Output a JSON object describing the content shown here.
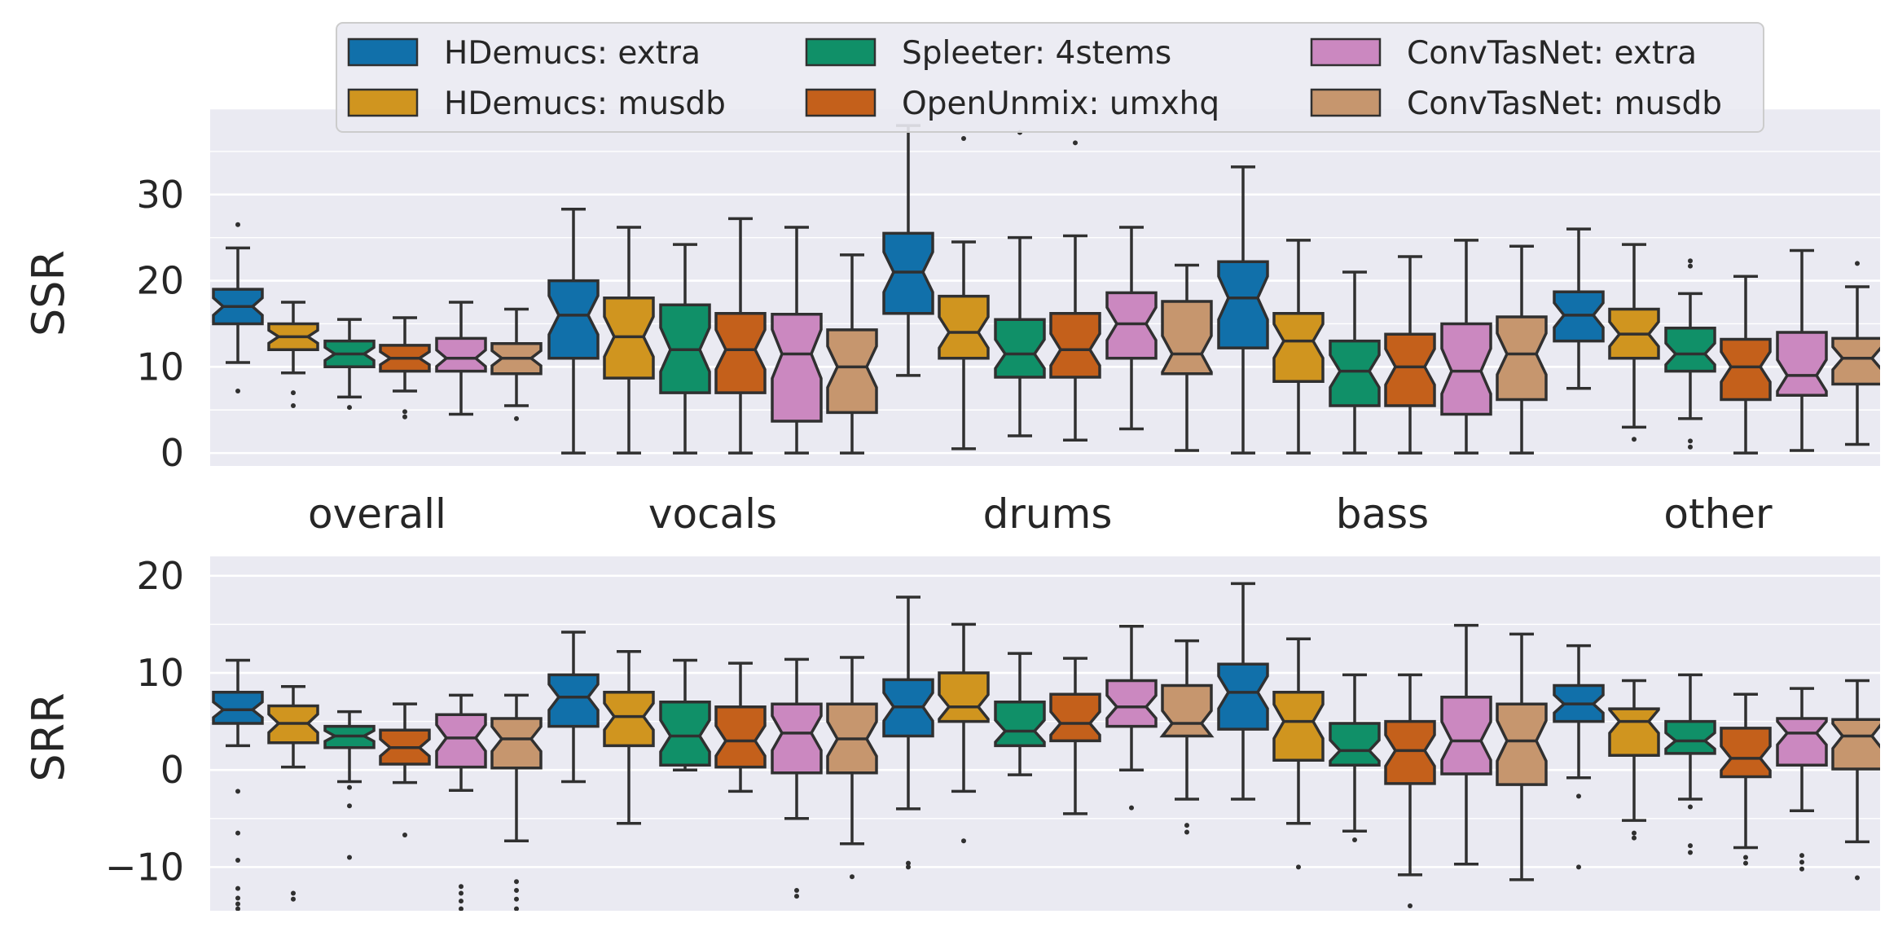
{
  "colors": {
    "HDemucs: extra": "#1170aa",
    "HDemucs: musdb": "#d0951f",
    "Spleeter: 4stems": "#109068",
    "OpenUnmix: umxhq": "#c4601b",
    "ConvTasNet: extra": "#cb88c0",
    "ConvTasNet: musdb": "#c6966e",
    "panel_bg": "#eaeaf2",
    "grid": "#ffffff",
    "edge": "#303030"
  },
  "chart_data": [
    {
      "type": "boxplot",
      "notched": true,
      "ylabel": "SSR",
      "ylim": [
        -1.5,
        40
      ],
      "yticks": [
        0,
        10,
        20,
        30
      ],
      "grid": true,
      "legend": "top-center",
      "categories": [
        "overall",
        "vocals",
        "drums",
        "bass",
        "other"
      ],
      "series": [
        {
          "name": "HDemucs: extra",
          "boxes": [
            {
              "whislo": 10.5,
              "q1": 15,
              "med": 17,
              "q3": 19,
              "whishi": 23.8,
              "fliers": [
                7.2,
                26.5
              ]
            },
            {
              "whislo": 0,
              "q1": 11,
              "med": 16,
              "q3": 20,
              "whishi": 28.3,
              "fliers": []
            },
            {
              "whislo": 9,
              "q1": 16.2,
              "med": 21,
              "q3": 25.5,
              "whishi": 38,
              "fliers": []
            },
            {
              "whislo": 0,
              "q1": 12.2,
              "med": 18,
              "q3": 22.2,
              "whishi": 33.2,
              "fliers": []
            },
            {
              "whislo": 7.5,
              "q1": 13,
              "med": 16,
              "q3": 18.7,
              "whishi": 26,
              "fliers": []
            }
          ]
        },
        {
          "name": "HDemucs: musdb",
          "boxes": [
            {
              "whislo": 9.3,
              "q1": 12,
              "med": 13.5,
              "q3": 15,
              "whishi": 17.5,
              "fliers": [
                5.5,
                7
              ]
            },
            {
              "whislo": 0,
              "q1": 8.7,
              "med": 13.5,
              "q3": 18,
              "whishi": 26.2,
              "fliers": []
            },
            {
              "whislo": 0.5,
              "q1": 11,
              "med": 14,
              "q3": 18.2,
              "whishi": 24.5,
              "fliers": [
                36.5
              ]
            },
            {
              "whislo": 0,
              "q1": 8.3,
              "med": 13,
              "q3": 16.2,
              "whishi": 24.7,
              "fliers": []
            },
            {
              "whislo": 3,
              "q1": 11,
              "med": 13.8,
              "q3": 16.7,
              "whishi": 24.2,
              "fliers": [
                1.6
              ]
            }
          ]
        },
        {
          "name": "Spleeter: 4stems",
          "boxes": [
            {
              "whislo": 6.5,
              "q1": 10,
              "med": 11.5,
              "q3": 13,
              "whishi": 15.5,
              "fliers": [
                5.3
              ]
            },
            {
              "whislo": 0,
              "q1": 7,
              "med": 12,
              "q3": 17.2,
              "whishi": 24.2,
              "fliers": []
            },
            {
              "whislo": 2,
              "q1": 8.8,
              "med": 11.5,
              "q3": 15.5,
              "whishi": 25,
              "fliers": [
                37.2
              ]
            },
            {
              "whislo": 0,
              "q1": 5.5,
              "med": 9.5,
              "q3": 13,
              "whishi": 21,
              "fliers": []
            },
            {
              "whislo": 4,
              "q1": 9.5,
              "med": 11.5,
              "q3": 14.5,
              "whishi": 18.5,
              "fliers": [
                0.7,
                1.4,
                21.7,
                22.3
              ]
            }
          ]
        },
        {
          "name": "OpenUnmix: umxhq",
          "boxes": [
            {
              "whislo": 7.2,
              "q1": 9.5,
              "med": 11,
              "q3": 12.5,
              "whishi": 15.7,
              "fliers": [
                4.2,
                4.8
              ]
            },
            {
              "whislo": 0,
              "q1": 7,
              "med": 12,
              "q3": 16.2,
              "whishi": 27.2,
              "fliers": []
            },
            {
              "whislo": 1.5,
              "q1": 8.8,
              "med": 12,
              "q3": 16.2,
              "whishi": 25.2,
              "fliers": [
                36
              ]
            },
            {
              "whislo": 0,
              "q1": 5.5,
              "med": 10,
              "q3": 13.8,
              "whishi": 22.8,
              "fliers": []
            },
            {
              "whislo": 0,
              "q1": 6.2,
              "med": 10,
              "q3": 13.2,
              "whishi": 20.5,
              "fliers": []
            }
          ]
        },
        {
          "name": "ConvTasNet: extra",
          "boxes": [
            {
              "whislo": 4.5,
              "q1": 9.5,
              "med": 11,
              "q3": 13.3,
              "whishi": 17.5,
              "fliers": []
            },
            {
              "whislo": 0,
              "q1": 3.7,
              "med": 11.5,
              "q3": 16.1,
              "whishi": 26.2,
              "fliers": []
            },
            {
              "whislo": 2.8,
              "q1": 11,
              "med": 15,
              "q3": 18.6,
              "whishi": 26.2,
              "fliers": []
            },
            {
              "whislo": 0,
              "q1": 4.5,
              "med": 9.5,
              "q3": 15,
              "whishi": 24.7,
              "fliers": []
            },
            {
              "whislo": 0.3,
              "q1": 6.7,
              "med": 9,
              "q3": 14,
              "whishi": 23.5,
              "fliers": []
            }
          ]
        },
        {
          "name": "ConvTasNet: musdb",
          "boxes": [
            {
              "whislo": 5.5,
              "q1": 9.2,
              "med": 11,
              "q3": 12.7,
              "whishi": 16.7,
              "fliers": [
                4
              ]
            },
            {
              "whislo": 0,
              "q1": 4.7,
              "med": 10,
              "q3": 14.3,
              "whishi": 23,
              "fliers": []
            },
            {
              "whislo": 0.3,
              "q1": 9.2,
              "med": 11.5,
              "q3": 17.6,
              "whishi": 21.8,
              "fliers": []
            },
            {
              "whislo": 0,
              "q1": 6.2,
              "med": 11.5,
              "q3": 15.8,
              "whishi": 24,
              "fliers": []
            },
            {
              "whislo": 1,
              "q1": 8,
              "med": 11,
              "q3": 13.3,
              "whishi": 19.3,
              "fliers": [
                22
              ]
            }
          ]
        }
      ]
    },
    {
      "type": "boxplot",
      "notched": true,
      "ylabel": "SRR",
      "ylim": [
        -14.5,
        22
      ],
      "yticks": [
        -10,
        0,
        10,
        20
      ],
      "grid": true,
      "categories": [
        "overall",
        "vocals",
        "drums",
        "bass",
        "other"
      ],
      "series": [
        {
          "name": "HDemucs: extra",
          "boxes": [
            {
              "whislo": 2.5,
              "q1": 4.8,
              "med": 6.2,
              "q3": 8,
              "whishi": 11.3,
              "fliers": [
                -2.2,
                -6.5,
                -9.3,
                -12.2,
                -13.2,
                -13.8,
                -14.3
              ]
            },
            {
              "whislo": -1.2,
              "q1": 4.5,
              "med": 7.5,
              "q3": 9.8,
              "whishi": 14.2,
              "fliers": []
            },
            {
              "whislo": -4,
              "q1": 3.5,
              "med": 6.5,
              "q3": 9.3,
              "whishi": 17.8,
              "fliers": [
                -9.6,
                -10
              ]
            },
            {
              "whislo": -3,
              "q1": 4.2,
              "med": 8,
              "q3": 10.9,
              "whishi": 19.2,
              "fliers": []
            },
            {
              "whislo": -0.8,
              "q1": 5,
              "med": 6.8,
              "q3": 8.7,
              "whishi": 12.8,
              "fliers": [
                -2.7,
                -10
              ]
            }
          ]
        },
        {
          "name": "HDemucs: musdb",
          "boxes": [
            {
              "whislo": 0.3,
              "q1": 2.8,
              "med": 4.8,
              "q3": 6.6,
              "whishi": 8.6,
              "fliers": [
                -12.7,
                -13.3
              ]
            },
            {
              "whislo": -5.5,
              "q1": 2.5,
              "med": 5.5,
              "q3": 8,
              "whishi": 12.2,
              "fliers": []
            },
            {
              "whislo": -2.2,
              "q1": 5,
              "med": 6.5,
              "q3": 10,
              "whishi": 15,
              "fliers": [
                -7.3
              ]
            },
            {
              "whislo": -5.5,
              "q1": 1,
              "med": 5,
              "q3": 8,
              "whishi": 13.5,
              "fliers": [
                -10
              ]
            },
            {
              "whislo": -5.2,
              "q1": 1.5,
              "med": 5,
              "q3": 6.3,
              "whishi": 9.2,
              "fliers": [
                -6.5,
                -7
              ]
            }
          ]
        },
        {
          "name": "Spleeter: 4stems",
          "boxes": [
            {
              "whislo": -1.2,
              "q1": 2.3,
              "med": 3.5,
              "q3": 4.5,
              "whishi": 6,
              "fliers": [
                -1.8,
                -3.7,
                -9
              ]
            },
            {
              "whislo": 0,
              "q1": 0.5,
              "med": 3.5,
              "q3": 7,
              "whishi": 11.3,
              "fliers": []
            },
            {
              "whislo": -0.5,
              "q1": 2.5,
              "med": 4,
              "q3": 7,
              "whishi": 12,
              "fliers": []
            },
            {
              "whislo": -6.3,
              "q1": 0.5,
              "med": 2,
              "q3": 4.8,
              "whishi": 9.8,
              "fliers": [
                -7.2
              ]
            },
            {
              "whislo": -3,
              "q1": 1.7,
              "med": 3,
              "q3": 5,
              "whishi": 9.8,
              "fliers": [
                -3.8,
                -7.8,
                -8.5
              ]
            }
          ]
        },
        {
          "name": "OpenUnmix: umxhq",
          "boxes": [
            {
              "whislo": -1.3,
              "q1": 0.6,
              "med": 2.3,
              "q3": 4.1,
              "whishi": 6.8,
              "fliers": [
                -6.7
              ]
            },
            {
              "whislo": -2.2,
              "q1": 0.3,
              "med": 3,
              "q3": 6.5,
              "whishi": 11,
              "fliers": []
            },
            {
              "whislo": -4.5,
              "q1": 3,
              "med": 4.8,
              "q3": 7.8,
              "whishi": 11.5,
              "fliers": []
            },
            {
              "whislo": -10.8,
              "q1": -1.4,
              "med": 2,
              "q3": 5,
              "whishi": 9.8,
              "fliers": [
                -14
              ]
            },
            {
              "whislo": -8,
              "q1": -0.7,
              "med": 1.2,
              "q3": 4.3,
              "whishi": 7.8,
              "fliers": [
                -9,
                -9.6
              ]
            }
          ]
        },
        {
          "name": "ConvTasNet: extra",
          "boxes": [
            {
              "whislo": -2.1,
              "q1": 0.3,
              "med": 3.3,
              "q3": 5.7,
              "whishi": 7.7,
              "fliers": [
                -12,
                -12.7,
                -13.5,
                -14.3
              ]
            },
            {
              "whislo": -5,
              "q1": -0.3,
              "med": 3.8,
              "q3": 6.8,
              "whishi": 11.4,
              "fliers": [
                -12.4,
                -13
              ]
            },
            {
              "whislo": 0,
              "q1": 4.5,
              "med": 6.5,
              "q3": 9.2,
              "whishi": 14.8,
              "fliers": [
                -3.9
              ]
            },
            {
              "whislo": -9.7,
              "q1": -0.4,
              "med": 3,
              "q3": 7.5,
              "whishi": 14.9,
              "fliers": []
            },
            {
              "whislo": -4.2,
              "q1": 0.5,
              "med": 3.8,
              "q3": 5.3,
              "whishi": 8.4,
              "fliers": [
                -8.8,
                -9.5,
                -10.2
              ]
            }
          ]
        },
        {
          "name": "ConvTasNet: musdb",
          "boxes": [
            {
              "whislo": -7.3,
              "q1": 0.2,
              "med": 3.2,
              "q3": 5.3,
              "whishi": 7.7,
              "fliers": [
                -11.5,
                -12.4,
                -13.3,
                -14.3
              ]
            },
            {
              "whislo": -7.6,
              "q1": -0.3,
              "med": 3.2,
              "q3": 6.8,
              "whishi": 11.6,
              "fliers": [
                -11
              ]
            },
            {
              "whislo": -3,
              "q1": 3.5,
              "med": 4.8,
              "q3": 8.7,
              "whishi": 13.3,
              "fliers": [
                -5.7,
                -6.4
              ]
            },
            {
              "whislo": -11.3,
              "q1": -1.5,
              "med": 3,
              "q3": 6.8,
              "whishi": 14,
              "fliers": []
            },
            {
              "whislo": -7.4,
              "q1": 0.1,
              "med": 3.5,
              "q3": 5.2,
              "whishi": 9.2,
              "fliers": [
                -11.1
              ]
            }
          ]
        }
      ]
    }
  ]
}
